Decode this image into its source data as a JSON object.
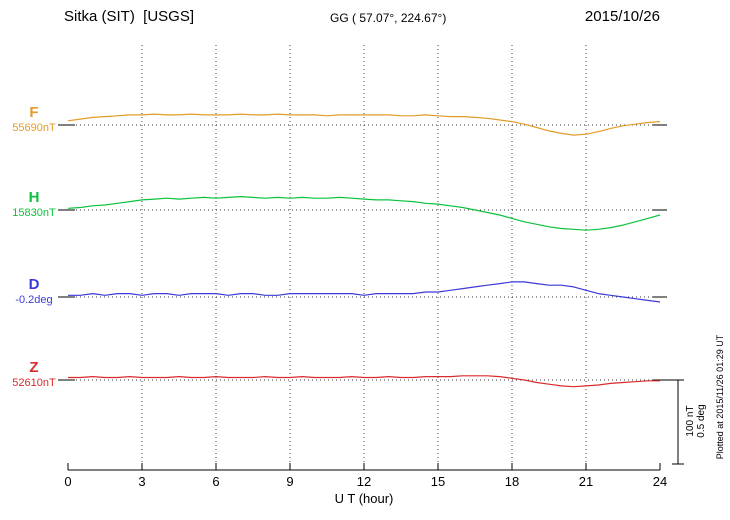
{
  "header": {
    "station": "Sitka (SIT)  [USGS]",
    "geo": "GG ( 57.07°, 224.67°)",
    "date": "2015/10/26"
  },
  "axes": {
    "x_ticks": [
      0,
      3,
      6,
      9,
      12,
      15,
      18,
      21,
      24
    ],
    "xlabel": "U T (hour)"
  },
  "channels": [
    {
      "name": "F",
      "value_label": "55690nT",
      "color": "#e29c28"
    },
    {
      "name": "H",
      "value_label": "15830nT",
      "color": "#0cc23c"
    },
    {
      "name": "D",
      "value_label": "-0.2deg",
      "color": "#3a3ad8"
    },
    {
      "name": "Z",
      "value_label": "52610nT",
      "color": "#d92b2b"
    }
  ],
  "scale_bar": {
    "nt_label": "100 nT",
    "deg_label": "0.5 deg"
  },
  "footer_note": "Plotted at 2015/11/26 01:29 UT",
  "chart_data": {
    "type": "line",
    "title": "Sitka (SIT) [USGS] magnetogram 2015/10/26",
    "xlabel": "U T (hour)",
    "x_range": [
      0,
      24
    ],
    "x_start_hour": 0,
    "x_step_hours": 0.5,
    "grid": "dotted-vertical-every-3h",
    "legend_position": "left-margin",
    "scale": {
      "bar_nT": 100,
      "bar_deg": 0.5
    },
    "series": [
      {
        "name": "F",
        "units": "nT",
        "baseline_value": 55690,
        "offsets": [
          5,
          7,
          9,
          10,
          11,
          12,
          12,
          13,
          12,
          12,
          13,
          12,
          12,
          12,
          13,
          12,
          12,
          13,
          12,
          12,
          12,
          11,
          12,
          12,
          12,
          12,
          12,
          11,
          11,
          12,
          11,
          10,
          10,
          9,
          8,
          6,
          4,
          1,
          -3,
          -7,
          -10,
          -12,
          -11,
          -8,
          -4,
          -1,
          1,
          3,
          4
        ]
      },
      {
        "name": "H",
        "units": "nT",
        "baseline_value": 15830,
        "offsets": [
          2,
          3,
          5,
          6,
          8,
          10,
          12,
          13,
          14,
          13,
          14,
          15,
          14,
          15,
          16,
          15,
          14,
          15,
          14,
          15,
          14,
          14,
          15,
          14,
          13,
          12,
          12,
          11,
          10,
          8,
          7,
          5,
          3,
          0,
          -3,
          -6,
          -10,
          -14,
          -17,
          -20,
          -22,
          -23,
          -24,
          -23,
          -21,
          -18,
          -14,
          -10,
          -6
        ]
      },
      {
        "name": "D",
        "units": "deg",
        "baseline_value": -0.2,
        "offsets": [
          0.01,
          0.01,
          0.02,
          0.01,
          0.02,
          0.02,
          0.01,
          0.02,
          0.02,
          0.01,
          0.02,
          0.02,
          0.02,
          0.01,
          0.02,
          0.02,
          0.01,
          0.01,
          0.02,
          0.02,
          0.02,
          0.02,
          0.02,
          0.02,
          0.01,
          0.02,
          0.02,
          0.02,
          0.02,
          0.03,
          0.03,
          0.04,
          0.05,
          0.06,
          0.07,
          0.08,
          0.09,
          0.09,
          0.08,
          0.07,
          0.07,
          0.06,
          0.04,
          0.02,
          0.01,
          0.0,
          -0.01,
          -0.02,
          -0.03
        ]
      },
      {
        "name": "Z",
        "units": "nT",
        "baseline_value": 52610,
        "offsets": [
          3,
          3,
          4,
          3,
          3,
          4,
          3,
          3,
          3,
          4,
          3,
          3,
          4,
          3,
          3,
          3,
          4,
          3,
          3,
          4,
          3,
          3,
          3,
          4,
          3,
          3,
          4,
          3,
          3,
          4,
          4,
          4,
          5,
          5,
          5,
          4,
          2,
          0,
          -3,
          -5,
          -7,
          -8,
          -7,
          -6,
          -4,
          -3,
          -2,
          -1,
          -1
        ]
      }
    ]
  }
}
